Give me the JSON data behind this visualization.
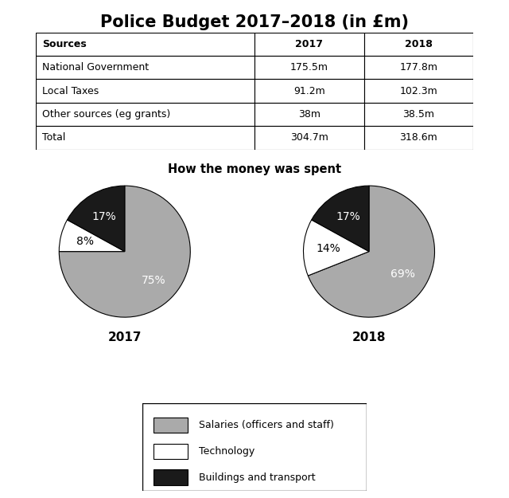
{
  "title": "Police Budget 2017–2018 (in £m)",
  "table": {
    "headers": [
      "Sources",
      "2017",
      "2018"
    ],
    "rows": [
      [
        "National Government",
        "175.5m",
        "177.8m"
      ],
      [
        "Local Taxes",
        "91.2m",
        "102.3m"
      ],
      [
        "Other sources (eg grants)",
        "38m",
        "38.5m"
      ],
      [
        "Total",
        "304.7m",
        "318.6m"
      ]
    ]
  },
  "pie_title": "How the money was spent",
  "pie_2017": {
    "label": "2017",
    "values": [
      75,
      8,
      17
    ],
    "colors": [
      "#aaaaaa",
      "#ffffff",
      "#1a1a1a"
    ],
    "labels": [
      "75%",
      "8%",
      "17%"
    ],
    "label_colors": [
      "white",
      "black",
      "white"
    ],
    "startangle": 90
  },
  "pie_2018": {
    "label": "2018",
    "values": [
      69,
      14,
      17
    ],
    "colors": [
      "#aaaaaa",
      "#ffffff",
      "#1a1a1a"
    ],
    "labels": [
      "69%",
      "14%",
      "17%"
    ],
    "label_colors": [
      "white",
      "black",
      "white"
    ],
    "startangle": 90
  },
  "legend_labels": [
    "Salaries (officers and staff)",
    "Technology",
    "Buildings and transport"
  ],
  "legend_colors": [
    "#aaaaaa",
    "#ffffff",
    "#1a1a1a"
  ],
  "background_color": "#ffffff"
}
